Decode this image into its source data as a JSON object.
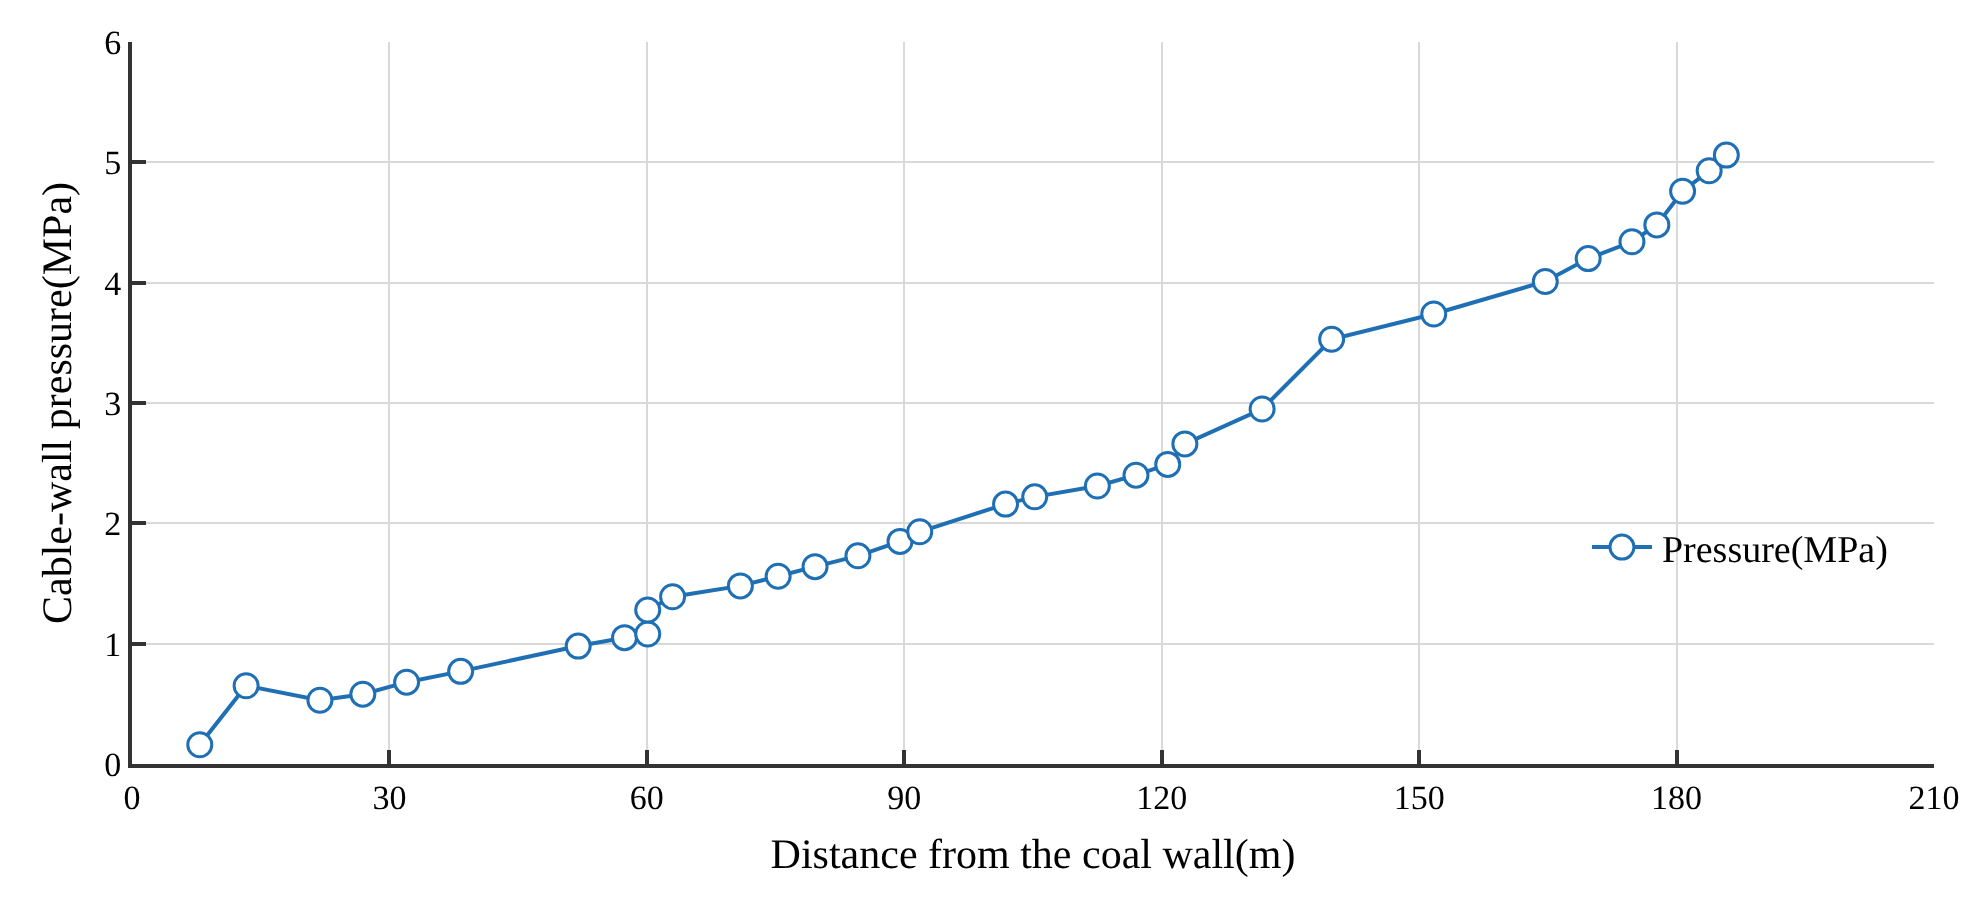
{
  "chart_data": {
    "type": "line",
    "xlabel": "Distance from the coal wall(m)",
    "ylabel": "Cable-wall pressure(MPa)",
    "x": [
      7.9,
      13.3,
      21.9,
      26.9,
      32.0,
      38.3,
      52.0,
      57.4,
      60.1,
      60.1,
      63.0,
      70.9,
      75.3,
      79.6,
      84.6,
      89.5,
      91.8,
      101.8,
      105.2,
      112.5,
      117.0,
      120.7,
      122.7,
      131.7,
      139.8,
      151.7,
      164.7,
      169.7,
      174.8,
      177.7,
      180.7,
      183.8,
      185.8
    ],
    "series": [
      {
        "name": "Pressure(MPa)",
        "color": "#1f6fb4",
        "values": [
          0.16,
          0.65,
          0.53,
          0.58,
          0.68,
          0.77,
          0.98,
          1.05,
          1.08,
          1.28,
          1.39,
          1.48,
          1.56,
          1.64,
          1.73,
          1.85,
          1.93,
          2.16,
          2.22,
          2.31,
          2.4,
          2.49,
          2.66,
          2.95,
          3.53,
          3.74,
          4.01,
          4.2,
          4.34,
          4.48,
          4.76,
          4.93,
          5.06
        ]
      }
    ],
    "xlim": [
      0,
      210
    ],
    "xticks": [
      0,
      30,
      60,
      90,
      120,
      150,
      180,
      210
    ],
    "ylim": [
      0,
      6
    ],
    "yticks": [
      0,
      1,
      2,
      3,
      4,
      5,
      6
    ],
    "grid": true,
    "legend": "right",
    "marker": "circle",
    "line_style": "solid"
  }
}
